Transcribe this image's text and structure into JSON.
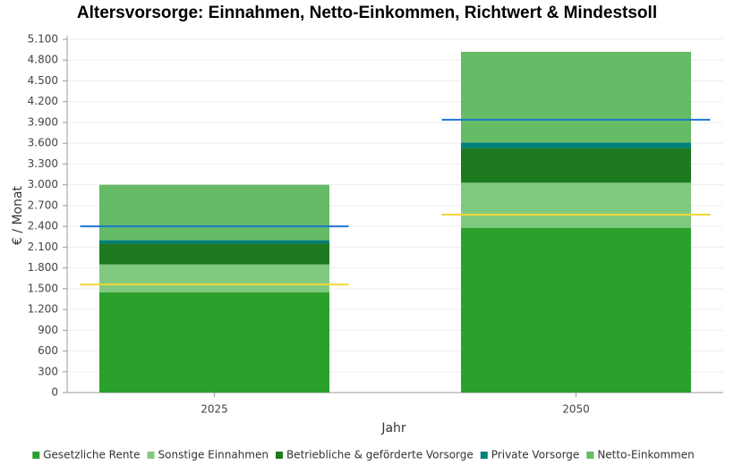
{
  "chart_data": {
    "type": "stacked_bar",
    "title": "Altersvorsorge: Einnahmen, Netto-Einkommen, Richtwert & Mindestsoll",
    "x_label": "Jahr",
    "y_label": "€ / Monat",
    "categories": [
      "2025",
      "2050"
    ],
    "series": [
      {
        "name": "Gesetzliche Rente",
        "color": "#2ca02c",
        "values": [
          1450,
          2380
        ]
      },
      {
        "name": "Sonstige Einnahmen",
        "color": "#80c980",
        "values": [
          400,
          650
        ]
      },
      {
        "name": "Betriebliche & geförderte Vorsorge",
        "color": "#1e7a1e",
        "values": [
          300,
          500
        ]
      },
      {
        "name": "Private Vorsorge",
        "color": "#00807a",
        "values": [
          50,
          80
        ]
      },
      {
        "name": "Netto-Einkommen",
        "color": "#66bb66",
        "values": [
          800,
          1310
        ]
      }
    ],
    "reference_lines": [
      {
        "color": "#1f77d0",
        "values": [
          2400,
          3940
        ]
      },
      {
        "color": "#f2d43a",
        "values": [
          1560,
          2570
        ]
      }
    ],
    "ylim": [
      0,
      5100
    ],
    "yticks": [
      0,
      300,
      600,
      900,
      {
        "value": 1200,
        "label": "1.200"
      },
      {
        "value": 1500,
        "label": "1.500"
      },
      {
        "value": 1800,
        "label": "1.800"
      },
      {
        "value": 2100,
        "label": "2.100"
      },
      {
        "value": 2400,
        "label": "2.400"
      },
      {
        "value": 2700,
        "label": "2.700"
      },
      {
        "value": 3000,
        "label": "3.000"
      },
      {
        "value": 3300,
        "label": "3.300"
      },
      {
        "value": 3600,
        "label": "3.600"
      },
      {
        "value": 3900,
        "label": "3.900"
      },
      {
        "value": 4200,
        "label": "4.200"
      },
      {
        "value": 4500,
        "label": "4.500"
      },
      {
        "value": 4800,
        "label": "4.800"
      },
      {
        "value": 5100,
        "label": "5.100"
      }
    ],
    "grid": true,
    "legend": "bottom"
  }
}
